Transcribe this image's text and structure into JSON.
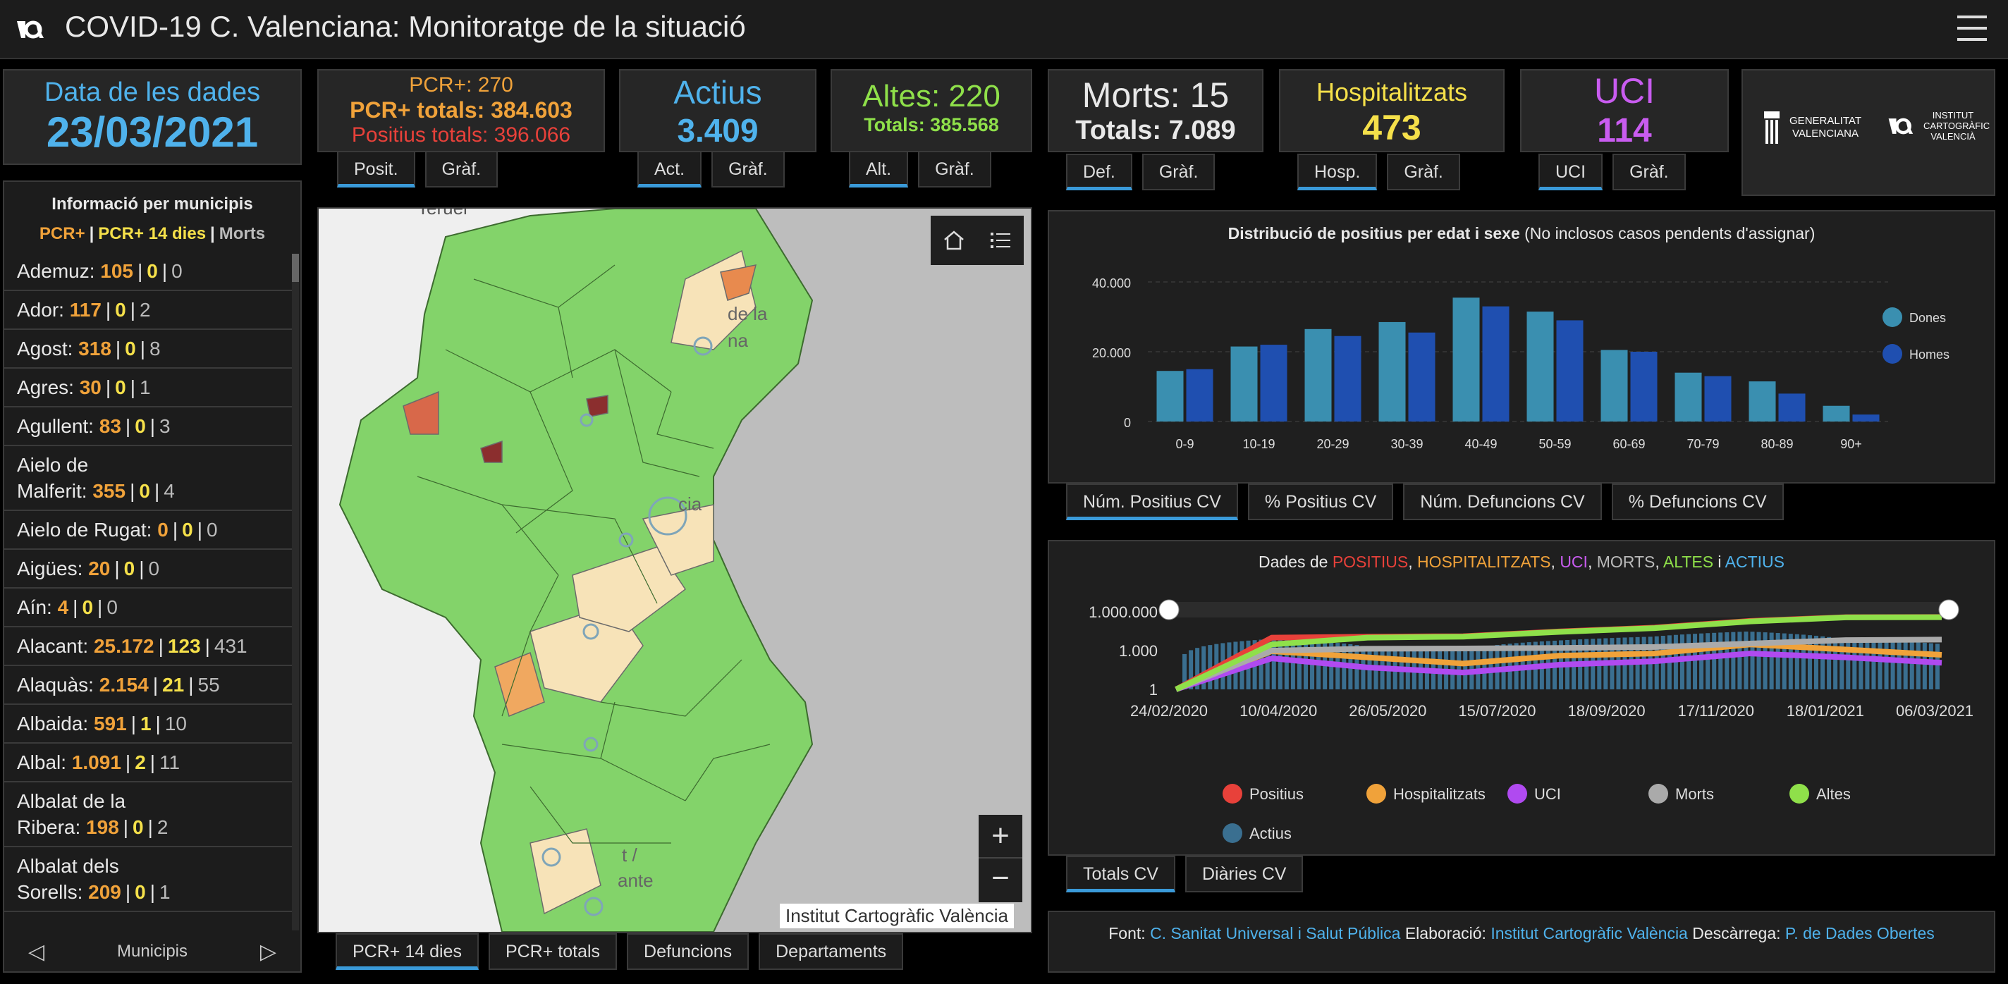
{
  "header": {
    "title": "COVID-19 C. Valenciana: Monitoratge de la situació"
  },
  "date": {
    "label": "Data de les dades",
    "value": "23/03/2021"
  },
  "pcr": {
    "daily": "PCR+: 270",
    "totals": "PCR+ totals: 384.603",
    "positives": "Positius totals: 396.066",
    "tabs": [
      "Posit.",
      "Gràf."
    ]
  },
  "actius": {
    "label": "Actius",
    "value": "3.409",
    "tabs": [
      "Act.",
      "Gràf."
    ]
  },
  "altes": {
    "label": "Altes: 220",
    "totals": "Totals: 385.568",
    "tabs": [
      "Alt.",
      "Gràf."
    ]
  },
  "morts": {
    "label": "Morts: 15",
    "totals": "Totals: 7.089",
    "tabs": [
      "Def.",
      "Gràf."
    ]
  },
  "hosp": {
    "label": "Hospitalitzats",
    "value": "473",
    "tabs": [
      "Hosp.",
      "Gràf."
    ]
  },
  "uci": {
    "label": "UCI",
    "value": "114",
    "tabs": [
      "UCI",
      "Gràf."
    ]
  },
  "logos": {
    "gv": "GENERALITAT VALENCIANA",
    "icv": "INSTITUT CARTOGRÀFIC VALENCIÀ"
  },
  "municipis": {
    "title": "Informació per municipis",
    "legend": {
      "pcr": "PCR+",
      "pcr14": "PCR+ 14 dies",
      "morts": "Morts"
    },
    "items": [
      {
        "name": "Ademuz:",
        "pcr": "105",
        "pcr14": "0",
        "morts": "0"
      },
      {
        "name": "Ador:",
        "pcr": "117",
        "pcr14": "0",
        "morts": "2"
      },
      {
        "name": "Agost:",
        "pcr": "318",
        "pcr14": "0",
        "morts": "8"
      },
      {
        "name": "Agres:",
        "pcr": "30",
        "pcr14": "0",
        "morts": "1"
      },
      {
        "name": "Agullent:",
        "pcr": "83",
        "pcr14": "0",
        "morts": "3"
      },
      {
        "name1": "Aielo de",
        "name": "Malferit:",
        "pcr": "355",
        "pcr14": "0",
        "morts": "4"
      },
      {
        "name": "Aielo de Rugat:",
        "pcr": "0",
        "pcr14": "0",
        "morts": "0"
      },
      {
        "name": "Aigües:",
        "pcr": "20",
        "pcr14": "0",
        "morts": "0"
      },
      {
        "name": "Aín:",
        "pcr": "4",
        "pcr14": "0",
        "morts": "0"
      },
      {
        "name": "Alacant:",
        "pcr": "25.172",
        "pcr14": "123",
        "morts": "431"
      },
      {
        "name": "Alaquàs:",
        "pcr": "2.154",
        "pcr14": "21",
        "morts": "55"
      },
      {
        "name": "Albaida:",
        "pcr": "591",
        "pcr14": "1",
        "morts": "10"
      },
      {
        "name": "Albal:",
        "pcr": "1.091",
        "pcr14": "2",
        "morts": "11"
      },
      {
        "name1": "Albalat de la",
        "name": "Ribera:",
        "pcr": "198",
        "pcr14": "0",
        "morts": "2"
      },
      {
        "name1": "Albalat dels",
        "name": "Sorells:",
        "pcr": "209",
        "pcr14": "0",
        "morts": "1"
      }
    ],
    "nav": "Municipis"
  },
  "map": {
    "attribution": "Institut Cartogràfic València",
    "labels": {
      "teruel": "Teruel",
      "plana": "de la",
      "plana2": "na",
      "valencia": "cia",
      "alacant": "t /",
      "alacant2": "ante"
    },
    "tabs": [
      "PCR+ 14 dies",
      "PCR+ totals",
      "Defuncions",
      "Departaments"
    ]
  },
  "bar_tabs": [
    "Núm. Positius CV",
    "% Positius CV",
    "Núm. Defuncions CV",
    "% Defuncions CV"
  ],
  "line_tabs": [
    "Totals CV",
    "Diàries CV"
  ],
  "line_chart_title": {
    "pre": "Dades de",
    "positius": "POSITIUS",
    "hosp": "HOSPITALITZATS",
    "uci": "UCI",
    "morts": "MORTS",
    "altes": "ALTES",
    "i": "i",
    "actius": "ACTIUS",
    "comma": ","
  },
  "footer": {
    "font_label": "Font:",
    "font_link": "C. Sanitat Universal i Salut Pública",
    "elab_label": "Elaboració:",
    "elab_link": "Institut Cartogràfic València",
    "desc_label": "Descàrrega:",
    "desc_link": "P. de Dades Obertes"
  },
  "colors": {
    "dones": "#3a8fb0",
    "homes": "#1f4fb0",
    "positius": "#e8413a",
    "hosp": "#f0a23a",
    "uci": "#b04af0",
    "morts": "#aaaaaa",
    "altes": "#8fe04a",
    "actius": "#3a6f90"
  },
  "chart_data": [
    {
      "type": "bar",
      "title": "Distribució de positius per edat i sexe",
      "subtitle": "(No inclosos casos pendents d'assignar)",
      "categories": [
        "0-9",
        "10-19",
        "20-29",
        "30-39",
        "40-49",
        "50-59",
        "60-69",
        "70-79",
        "80-89",
        "90+"
      ],
      "series": [
        {
          "name": "Dones",
          "values": [
            14500,
            21500,
            26500,
            28500,
            35500,
            31500,
            20500,
            14000,
            11500,
            4500
          ]
        },
        {
          "name": "Homes",
          "values": [
            15000,
            22000,
            24500,
            25500,
            33000,
            29000,
            20000,
            13000,
            8000,
            2000
          ]
        }
      ],
      "yticks": [
        "0",
        "20.000",
        "40.000"
      ],
      "ylim": [
        0,
        40000
      ],
      "legend_position": "right"
    },
    {
      "type": "line",
      "title": "Dades de POSITIUS, HOSPITALITZATS, UCI, MORTS, ALTES i ACTIUS",
      "yscale": "log",
      "yticks": [
        "1",
        "1.000",
        "1.000.000"
      ],
      "xticks": [
        "24/02/2020",
        "10/04/2020",
        "26/05/2020",
        "15/07/2020",
        "18/09/2020",
        "17/11/2020",
        "18/01/2021",
        "06/03/2021"
      ],
      "series": [
        {
          "name": "Positius",
          "values": [
            1,
            10000,
            12000,
            13000,
            30000,
            60000,
            200000,
            384603,
            396066
          ]
        },
        {
          "name": "Hospitalitzats",
          "values": [
            1,
            900,
            300,
            100,
            400,
            600,
            3000,
            1200,
            473
          ]
        },
        {
          "name": "UCI",
          "values": [
            1,
            250,
            50,
            20,
            80,
            150,
            600,
            300,
            114
          ]
        },
        {
          "name": "Morts",
          "values": [
            1,
            1000,
            1400,
            1450,
            1600,
            1900,
            3500,
            6500,
            7089
          ]
        },
        {
          "name": "Altes",
          "values": [
            1,
            3000,
            10000,
            12000,
            28000,
            55000,
            180000,
            370000,
            385568
          ]
        },
        {
          "name": "Actius",
          "values": [
            1,
            8000,
            2000,
            900,
            6000,
            12000,
            30000,
            8000,
            3409
          ]
        }
      ],
      "legend_position": "bottom"
    }
  ]
}
